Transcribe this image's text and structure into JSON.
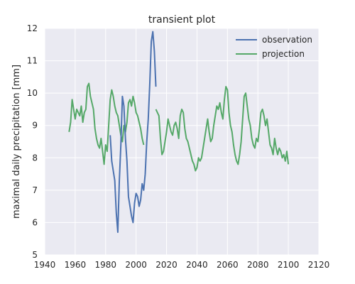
{
  "chart_data": {
    "type": "line",
    "title": "transient plot",
    "xlabel": "",
    "ylabel": "maximal daily precipitation [mm]",
    "xlim": [
      1940,
      2120
    ],
    "ylim": [
      5,
      12
    ],
    "xticks": [
      1940,
      1960,
      1980,
      2000,
      2020,
      2040,
      2060,
      2080,
      2100,
      2120
    ],
    "yticks": [
      5,
      6,
      7,
      8,
      9,
      10,
      11,
      12
    ],
    "grid": true,
    "legend_position": "top-right",
    "colors": {
      "background": "#EAEAF2",
      "grid": "#FFFFFF",
      "observation": "#4C72B0",
      "projection": "#55A868"
    },
    "series": [
      {
        "name": "projection",
        "color": "#55A868",
        "points": [
          [
            1956,
            8.8
          ],
          [
            1957,
            9.1
          ],
          [
            1958,
            9.8
          ],
          [
            1959,
            9.5
          ],
          [
            1960,
            9.2
          ],
          [
            1961,
            9.5
          ],
          [
            1962,
            9.4
          ],
          [
            1963,
            9.3
          ],
          [
            1964,
            9.6
          ],
          [
            1965,
            9.1
          ],
          [
            1966,
            9.4
          ],
          [
            1967,
            9.5
          ],
          [
            1968,
            10.2
          ],
          [
            1969,
            10.3
          ],
          [
            1970,
            9.9
          ],
          [
            1971,
            9.7
          ],
          [
            1972,
            9.5
          ],
          [
            1973,
            8.9
          ],
          [
            1974,
            8.6
          ],
          [
            1975,
            8.4
          ],
          [
            1976,
            8.3
          ],
          [
            1977,
            8.6
          ],
          [
            1978,
            8.2
          ],
          [
            1979,
            7.8
          ],
          [
            1980,
            8.4
          ],
          [
            1981,
            8.2
          ],
          [
            1982,
            9.0
          ],
          [
            1983,
            9.8
          ],
          [
            1984,
            10.1
          ],
          [
            1985,
            9.9
          ],
          [
            1986,
            9.6
          ],
          [
            1987,
            9.4
          ],
          [
            1988,
            9.3
          ],
          [
            1989,
            9.0
          ],
          [
            1990,
            8.7
          ],
          [
            1991,
            8.5
          ],
          [
            1992,
            9.0
          ],
          [
            1993,
            8.8
          ],
          [
            1994,
            9.1
          ],
          [
            1995,
            9.7
          ],
          [
            1996,
            9.8
          ],
          [
            1997,
            9.6
          ],
          [
            1998,
            9.9
          ],
          [
            1999,
            9.7
          ],
          [
            2000,
            9.4
          ],
          [
            2001,
            9.3
          ],
          [
            2002,
            9.1
          ],
          [
            2003,
            8.9
          ],
          [
            2004,
            8.6
          ],
          [
            2005,
            8.4
          ]
        ],
        "segment2": [
          [
            2013,
            9.5
          ],
          [
            2014,
            9.4
          ],
          [
            2015,
            9.3
          ],
          [
            2016,
            8.6
          ],
          [
            2017,
            8.1
          ],
          [
            2018,
            8.2
          ],
          [
            2019,
            8.5
          ],
          [
            2020,
            8.8
          ],
          [
            2021,
            9.2
          ],
          [
            2022,
            9.0
          ],
          [
            2023,
            8.8
          ],
          [
            2024,
            8.7
          ],
          [
            2025,
            9.0
          ],
          [
            2026,
            9.1
          ],
          [
            2027,
            8.9
          ],
          [
            2028,
            8.6
          ],
          [
            2029,
            9.3
          ],
          [
            2030,
            9.5
          ],
          [
            2031,
            9.4
          ],
          [
            2032,
            8.9
          ],
          [
            2033,
            8.6
          ],
          [
            2034,
            8.5
          ],
          [
            2035,
            8.3
          ],
          [
            2036,
            8.1
          ],
          [
            2037,
            7.9
          ],
          [
            2038,
            7.8
          ],
          [
            2039,
            7.6
          ],
          [
            2040,
            7.7
          ],
          [
            2041,
            8.0
          ],
          [
            2042,
            7.9
          ],
          [
            2043,
            8.0
          ],
          [
            2044,
            8.3
          ],
          [
            2045,
            8.6
          ],
          [
            2046,
            8.9
          ],
          [
            2047,
            9.2
          ],
          [
            2048,
            8.8
          ],
          [
            2049,
            8.5
          ],
          [
            2050,
            8.6
          ],
          [
            2051,
            9.0
          ],
          [
            2052,
            9.3
          ],
          [
            2053,
            9.6
          ],
          [
            2054,
            9.5
          ],
          [
            2055,
            9.7
          ],
          [
            2056,
            9.4
          ],
          [
            2057,
            9.2
          ],
          [
            2058,
            9.8
          ],
          [
            2059,
            10.2
          ],
          [
            2060,
            10.1
          ],
          [
            2061,
            9.4
          ],
          [
            2062,
            9.0
          ],
          [
            2063,
            8.8
          ],
          [
            2064,
            8.4
          ],
          [
            2065,
            8.1
          ],
          [
            2066,
            7.9
          ],
          [
            2067,
            7.8
          ],
          [
            2068,
            8.1
          ],
          [
            2069,
            8.5
          ],
          [
            2070,
            9.2
          ],
          [
            2071,
            9.9
          ],
          [
            2072,
            10.0
          ],
          [
            2073,
            9.6
          ],
          [
            2074,
            9.2
          ],
          [
            2075,
            9.0
          ],
          [
            2076,
            8.6
          ],
          [
            2077,
            8.4
          ],
          [
            2078,
            8.3
          ],
          [
            2079,
            8.6
          ],
          [
            2080,
            8.5
          ],
          [
            2081,
            8.9
          ],
          [
            2082,
            9.4
          ],
          [
            2083,
            9.5
          ],
          [
            2084,
            9.3
          ],
          [
            2085,
            9.0
          ],
          [
            2086,
            9.2
          ],
          [
            2087,
            8.8
          ],
          [
            2088,
            8.4
          ],
          [
            2089,
            8.3
          ],
          [
            2090,
            8.1
          ],
          [
            2091,
            8.6
          ],
          [
            2092,
            8.3
          ],
          [
            2093,
            8.1
          ],
          [
            2094,
            8.3
          ],
          [
            2095,
            8.2
          ],
          [
            2096,
            8.0
          ],
          [
            2097,
            8.1
          ],
          [
            2098,
            7.9
          ],
          [
            2099,
            8.2
          ],
          [
            2100,
            7.8
          ]
        ]
      },
      {
        "name": "observation",
        "color": "#4C72B0",
        "points": [
          [
            1983,
            8.7
          ],
          [
            1984,
            7.9
          ],
          [
            1985,
            7.6
          ],
          [
            1986,
            7.3
          ],
          [
            1987,
            6.3
          ],
          [
            1988,
            5.7
          ],
          [
            1989,
            7.3
          ],
          [
            1990,
            8.4
          ],
          [
            1991,
            9.9
          ],
          [
            1992,
            9.6
          ],
          [
            1993,
            8.6
          ],
          [
            1994,
            7.9
          ],
          [
            1995,
            6.8
          ],
          [
            1996,
            6.5
          ],
          [
            1997,
            6.2
          ],
          [
            1998,
            6.0
          ],
          [
            1999,
            6.6
          ],
          [
            2000,
            6.9
          ],
          [
            2001,
            6.8
          ],
          [
            2002,
            6.5
          ],
          [
            2003,
            6.7
          ],
          [
            2004,
            7.2
          ],
          [
            2005,
            7.0
          ],
          [
            2006,
            7.5
          ],
          [
            2007,
            8.5
          ],
          [
            2008,
            9.2
          ],
          [
            2009,
            10.3
          ],
          [
            2010,
            11.6
          ],
          [
            2011,
            11.9
          ],
          [
            2012,
            11.3
          ],
          [
            2013,
            10.2
          ]
        ]
      }
    ]
  }
}
